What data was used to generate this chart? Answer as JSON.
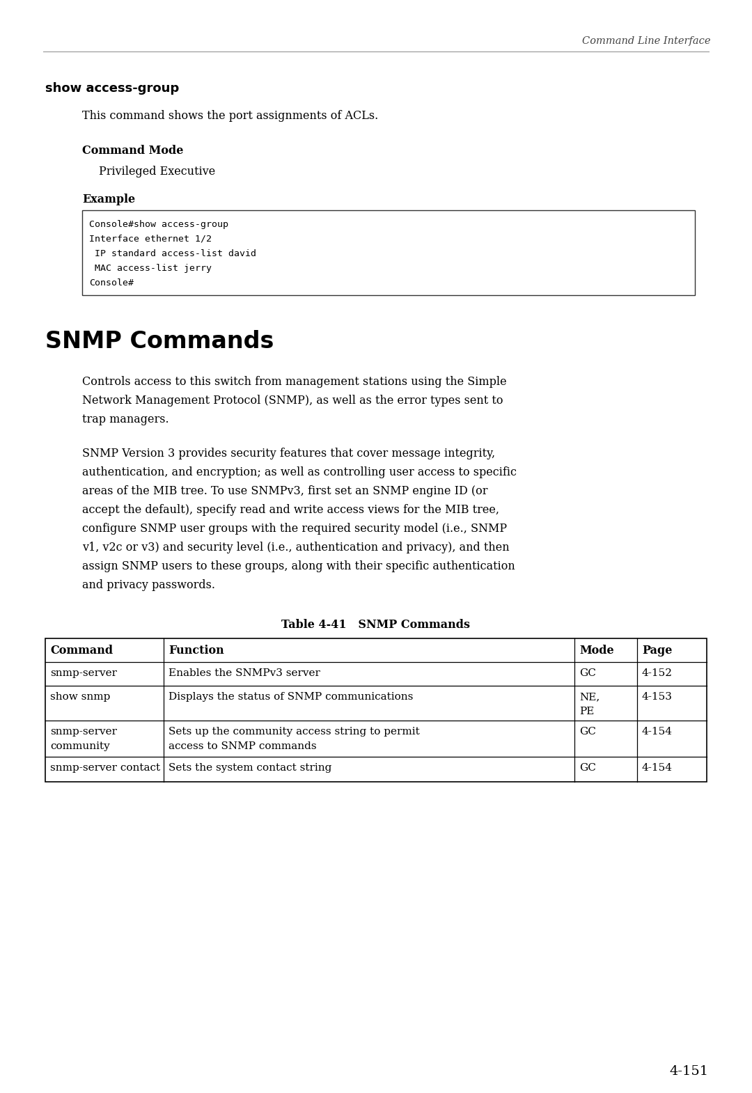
{
  "header_text": "Command Line Interface",
  "section1_title": "show access-group",
  "section1_desc": "This command shows the port assignments of ACLs.",
  "cmd_mode_label": "Command Mode",
  "cmd_mode_value": "Privileged Executive",
  "example_label": "Example",
  "code_lines": [
    "Console#show access-group",
    "Interface ethernet 1/2",
    " IP standard access-list david",
    " MAC access-list jerry",
    "Console#"
  ],
  "section2_title": "SNMP Commands",
  "section2_para1": "Controls access to this switch from management stations using the Simple\nNetwork Management Protocol (SNMP), as well as the error types sent to\ntrap managers.",
  "section2_para2": "SNMP Version 3 provides security features that cover message integrity,\nauthentication, and encryption; as well as controlling user access to specific\nareas of the MIB tree. To use SNMPv3, first set an SNMP engine ID (or\naccept the default), specify read and write access views for the MIB tree,\nconfigure SNMP user groups with the required security model (i.e., SNMP\nv1, v2c or v3) and security level (i.e., authentication and privacy), and then\nassign SNMP users to these groups, along with their specific authentication\nand privacy passwords.",
  "table_title": "Table 4-41   SNMP Commands",
  "table_headers": [
    "Command",
    "Function",
    "Mode",
    "Page"
  ],
  "table_rows": [
    [
      "snmp-server",
      "Enables the SNMPv3 server",
      "GC",
      "4-152"
    ],
    [
      "show snmp",
      "Displays the status of SNMP communications",
      "NE,\nPE",
      "4-153"
    ],
    [
      "snmp-server\ncommunity",
      "Sets up the community access string to permit\naccess to SNMP commands",
      "GC",
      "4-154"
    ],
    [
      "snmp-server contact",
      "Sets the system contact string",
      "GC",
      "4-154"
    ]
  ],
  "page_number": "4-151",
  "bg_color": "#ffffff",
  "text_color": "#000000"
}
